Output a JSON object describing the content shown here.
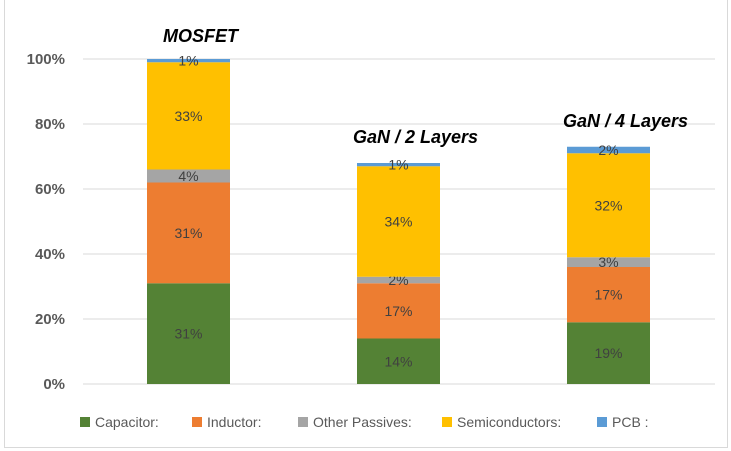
{
  "chart_data": {
    "type": "bar",
    "stacked": true,
    "categories": [
      "MOSFET",
      "GaN / 2 Layers",
      "GaN / 4 Layers"
    ],
    "series": [
      {
        "name": "Capacitor:",
        "color": "#548235",
        "values": [
          31,
          14,
          19
        ]
      },
      {
        "name": "Inductor:",
        "color": "#ED7D31",
        "values": [
          31,
          17,
          17
        ]
      },
      {
        "name": "Other Passives:",
        "color": "#A5A5A5",
        "values": [
          4,
          2,
          3
        ]
      },
      {
        "name": "Semiconductors:",
        "color": "#FFC000",
        "values": [
          33,
          34,
          32
        ]
      },
      {
        "name": "PCB :",
        "color": "#5B9BD5",
        "values": [
          1,
          1,
          2
        ]
      }
    ],
    "ylim": [
      0,
      100
    ],
    "yticks": [
      "0%",
      "20%",
      "40%",
      "60%",
      "80%",
      "100%"
    ],
    "grid": true,
    "legend": "bottom",
    "category_labels_position": "above-bars"
  }
}
